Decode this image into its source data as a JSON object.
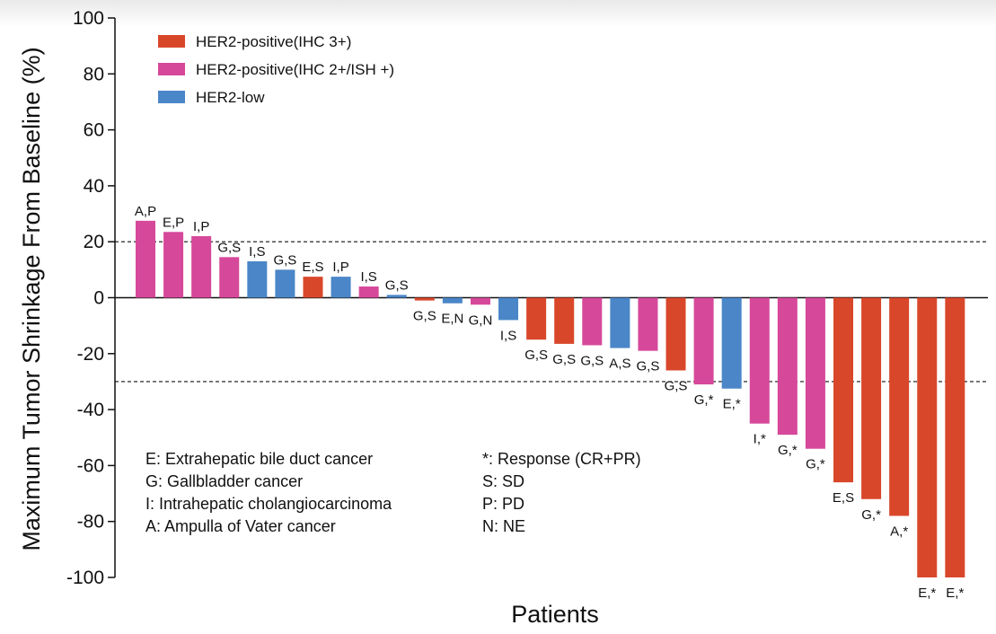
{
  "chart_data": {
    "type": "bar",
    "subtype": "waterfall",
    "xlabel": "Patients",
    "ylabel": "Maximum Tumor Shrinkage From Baseline (%)",
    "ylim": [
      -100,
      100
    ],
    "yticks": [
      100,
      80,
      60,
      40,
      20,
      0,
      -20,
      -40,
      -60,
      -80,
      -100
    ],
    "reference_lines": [
      20,
      -30
    ],
    "grid": false,
    "legend_position": "top-left",
    "legend": [
      {
        "key": "her2_ihc3",
        "label": "HER2-positive(IHC 3+)",
        "color": "#d9472b"
      },
      {
        "key": "her2_ihc2",
        "label": "HER2-positive(IHC 2+/ISH +)",
        "color": "#d6489a"
      },
      {
        "key": "her2_low",
        "label": "HER2-low",
        "color": "#4a86c8"
      }
    ],
    "bars": [
      {
        "label": "A,P",
        "value": 27.5,
        "group": "her2_ihc2"
      },
      {
        "label": "E,P",
        "value": 23.5,
        "group": "her2_ihc2"
      },
      {
        "label": "I,P",
        "value": 22,
        "group": "her2_ihc2"
      },
      {
        "label": "G,S",
        "value": 14.5,
        "group": "her2_ihc2"
      },
      {
        "label": "I,S",
        "value": 13,
        "group": "her2_low"
      },
      {
        "label": "G,S",
        "value": 10,
        "group": "her2_low"
      },
      {
        "label": "E,S",
        "value": 7.5,
        "group": "her2_ihc3"
      },
      {
        "label": "I,P",
        "value": 7.5,
        "group": "her2_low"
      },
      {
        "label": "I,S",
        "value": 4,
        "group": "her2_ihc2"
      },
      {
        "label": "G,S",
        "value": 1,
        "group": "her2_low"
      },
      {
        "label": "G,S",
        "value": -1,
        "group": "her2_ihc3"
      },
      {
        "label": "E,N",
        "value": -2,
        "group": "her2_low"
      },
      {
        "label": "G,N",
        "value": -2.5,
        "group": "her2_ihc2"
      },
      {
        "label": "I,S",
        "value": -8,
        "group": "her2_low"
      },
      {
        "label": "G,S",
        "value": -15,
        "group": "her2_ihc3"
      },
      {
        "label": "G,S",
        "value": -16.5,
        "group": "her2_ihc3"
      },
      {
        "label": "G,S",
        "value": -17,
        "group": "her2_ihc2"
      },
      {
        "label": "A,S",
        "value": -18,
        "group": "her2_low"
      },
      {
        "label": "G,S",
        "value": -19,
        "group": "her2_ihc2"
      },
      {
        "label": "G,S",
        "value": -26,
        "group": "her2_ihc3"
      },
      {
        "label": "G,*",
        "value": -31,
        "group": "her2_ihc2"
      },
      {
        "label": "E,*",
        "value": -32.5,
        "group": "her2_low"
      },
      {
        "label": "I,*",
        "value": -45,
        "group": "her2_ihc2"
      },
      {
        "label": "G,*",
        "value": -49,
        "group": "her2_ihc2"
      },
      {
        "label": "G,*",
        "value": -54,
        "group": "her2_ihc2"
      },
      {
        "label": "E,S",
        "value": -66,
        "group": "her2_ihc3"
      },
      {
        "label": "G,*",
        "value": -72,
        "group": "her2_ihc3"
      },
      {
        "label": "A,*",
        "value": -78,
        "group": "her2_ihc3"
      },
      {
        "label": "E,*",
        "value": -100,
        "group": "her2_ihc3"
      },
      {
        "label": "E,*",
        "value": -100,
        "group": "her2_ihc3"
      }
    ],
    "annotations": {
      "cancer_types": [
        "E: Extrahepatic bile duct cancer",
        "G: Gallbladder cancer",
        "I: Intrahepatic cholangiocarcinoma",
        "A: Ampulla of Vater cancer"
      ],
      "response_codes": [
        "*: Response (CR+PR)",
        "S: SD",
        "P: PD",
        "N: NE"
      ]
    }
  }
}
